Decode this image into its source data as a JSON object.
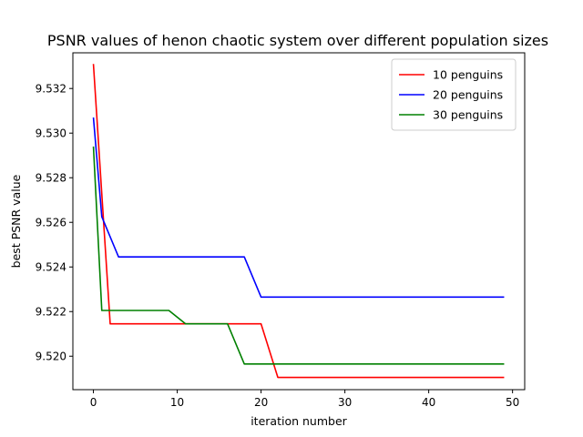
{
  "chart_data": {
    "type": "line",
    "title": "PSNR values of henon chaotic system over different population sizes",
    "xlabel": "iteration number",
    "ylabel": "best PSNR value",
    "xlim": [
      -2.45,
      51.45
    ],
    "ylim": [
      9.5185,
      9.5336
    ],
    "xticks": [
      0,
      10,
      20,
      30,
      40,
      50
    ],
    "yticks": [
      9.52,
      9.522,
      9.524,
      9.526,
      9.528,
      9.53,
      9.532
    ],
    "grid": false,
    "legend_position": "top-right",
    "series": [
      {
        "name": "10 penguins",
        "color": "#ff0000",
        "points": [
          [
            0,
            9.5331
          ],
          [
            2,
            9.52145
          ],
          [
            20,
            9.52145
          ],
          [
            22,
            9.51905
          ],
          [
            49,
            9.51905
          ]
        ]
      },
      {
        "name": "20 penguins",
        "color": "#0000ff",
        "points": [
          [
            0,
            9.5307
          ],
          [
            1,
            9.52625
          ],
          [
            3,
            9.52445
          ],
          [
            18,
            9.52445
          ],
          [
            20,
            9.52265
          ],
          [
            49,
            9.52265
          ]
        ]
      },
      {
        "name": "30 penguins",
        "color": "#008000",
        "points": [
          [
            0,
            9.5294
          ],
          [
            1,
            9.52205
          ],
          [
            9,
            9.52205
          ],
          [
            11,
            9.52145
          ],
          [
            16,
            9.52145
          ],
          [
            18,
            9.51965
          ],
          [
            49,
            9.51965
          ]
        ]
      }
    ]
  }
}
